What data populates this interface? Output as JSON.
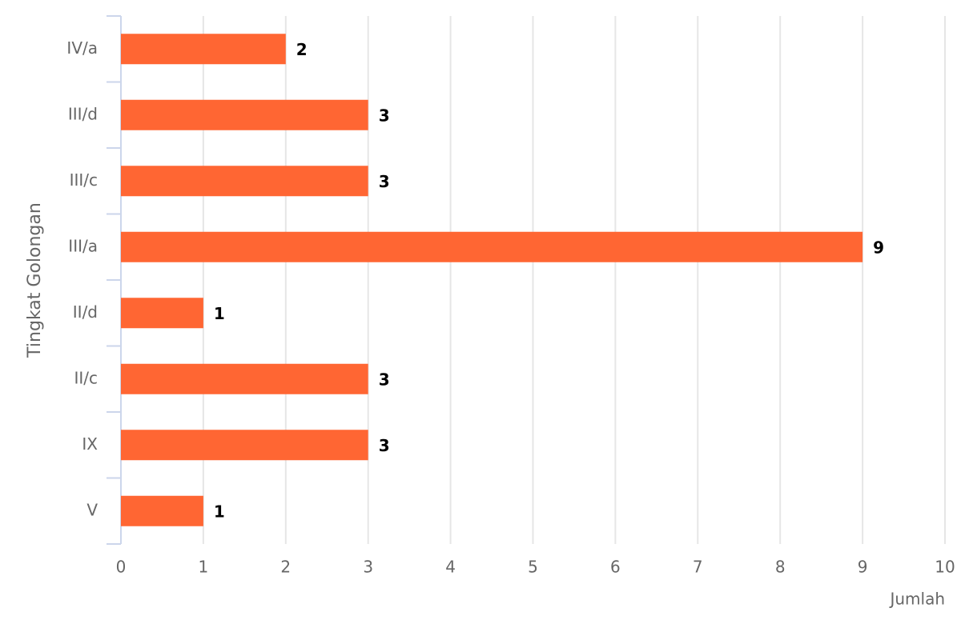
{
  "chart_data": {
    "type": "bar",
    "categories": [
      "IV/a",
      "III/d",
      "III/c",
      "III/a",
      "II/d",
      "II/c",
      "IX",
      "V"
    ],
    "values": [
      2,
      3,
      3,
      9,
      1,
      3,
      3,
      1
    ],
    "color": "#ff6633",
    "xlim": [
      0,
      10
    ],
    "xticks": [
      0,
      1,
      2,
      3,
      4,
      5,
      6,
      7,
      8,
      9,
      10
    ],
    "xlabel": "Jumlah",
    "ylabel": "Tingkat Golongan",
    "grid": true
  }
}
